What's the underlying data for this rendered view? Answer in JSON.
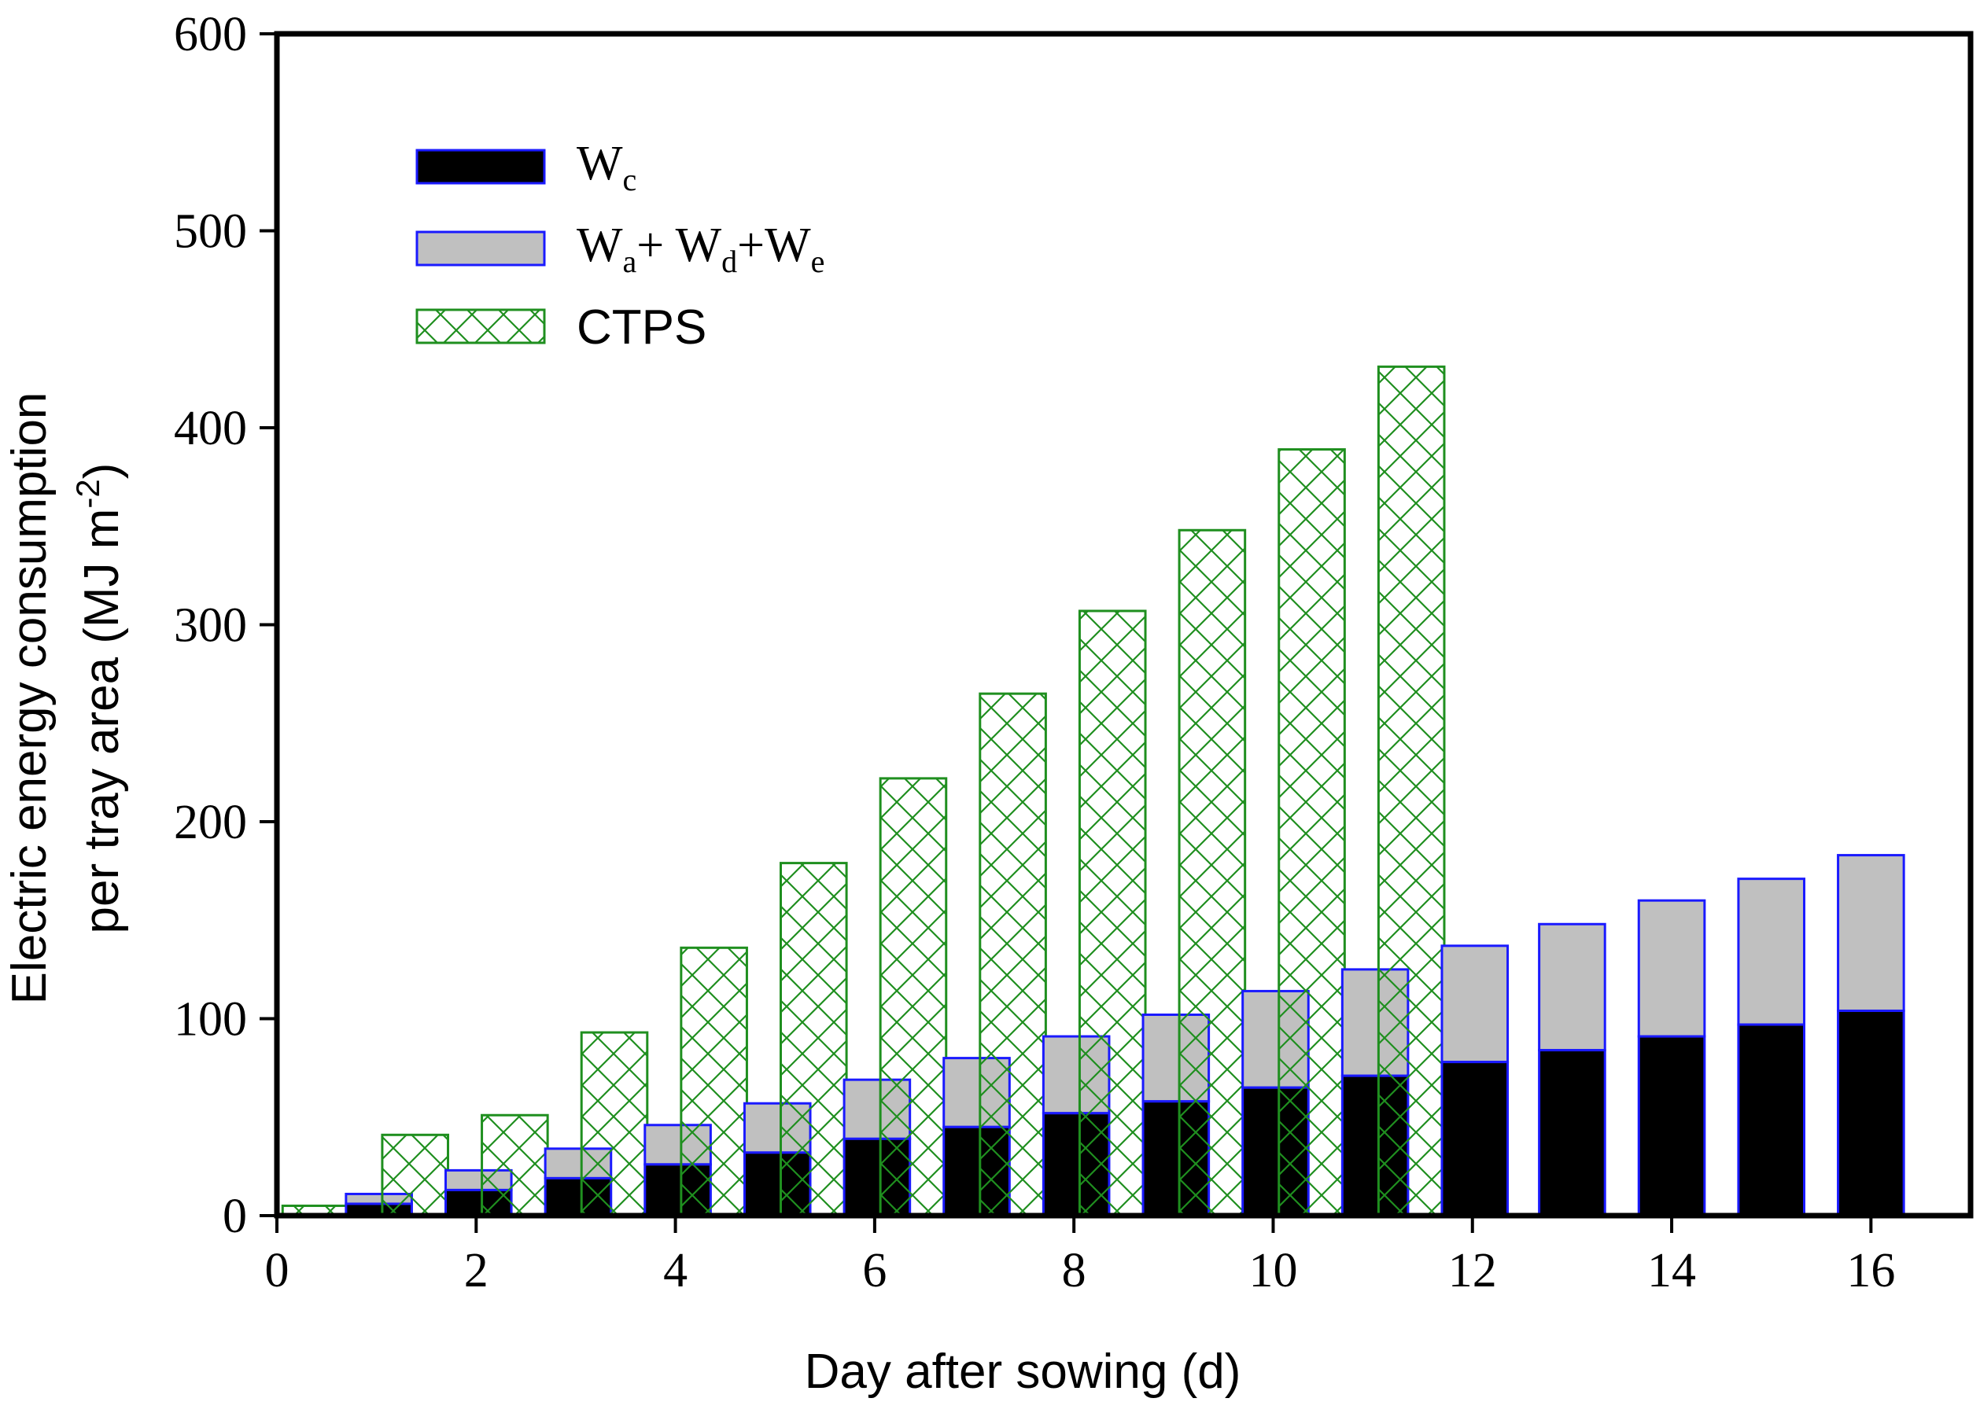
{
  "chart_data": {
    "type": "bar",
    "title": "",
    "xlabel": "Day after sowing (d)",
    "ylabel_line1": "Electric energy consumption",
    "ylabel_line2": "per tray area (MJ m",
    "ylabel_sup": "-2",
    "ylabel_close": ")",
    "xlim": [
      0,
      17
    ],
    "ylim": [
      0,
      600
    ],
    "xticks": [
      0,
      2,
      4,
      6,
      8,
      10,
      12,
      14,
      16
    ],
    "yticks": [
      0,
      100,
      200,
      300,
      400,
      500,
      600
    ],
    "legend_position": "top-left",
    "legend": {
      "wc": {
        "main": "W",
        "sub": "c"
      },
      "wade": {
        "w1": "W",
        "s1": "a",
        "plus1": "+ W",
        "s2": "d",
        "plus2": "+W",
        "s3": "e"
      },
      "ctps": {
        "label": "CTPS"
      }
    },
    "colors": {
      "wc_fill": "#000000",
      "wc_edge": "#1a1aff",
      "wade_fill": "#c0c0c0",
      "wade_edge": "#1a1aff",
      "ctps_edge": "#1f8f1f"
    },
    "days": [
      1,
      2,
      3,
      4,
      5,
      6,
      7,
      8,
      9,
      10,
      11,
      12,
      13,
      14,
      15,
      16
    ],
    "series": [
      {
        "name": "Wc",
        "values": [
          6,
          13,
          19,
          26,
          32,
          39,
          45,
          52,
          58,
          65,
          71,
          78,
          84,
          91,
          97,
          104
        ]
      },
      {
        "name": "Wa+Wd+We",
        "values": [
          5,
          10,
          15,
          20,
          25,
          30,
          35,
          39,
          44,
          49,
          54,
          59,
          64,
          69,
          74,
          79
        ]
      },
      {
        "name": "CTPS",
        "values": [
          5,
          41,
          51,
          93,
          136,
          179,
          222,
          265,
          307,
          348,
          389,
          431,
          null,
          null,
          null,
          null
        ]
      }
    ]
  }
}
